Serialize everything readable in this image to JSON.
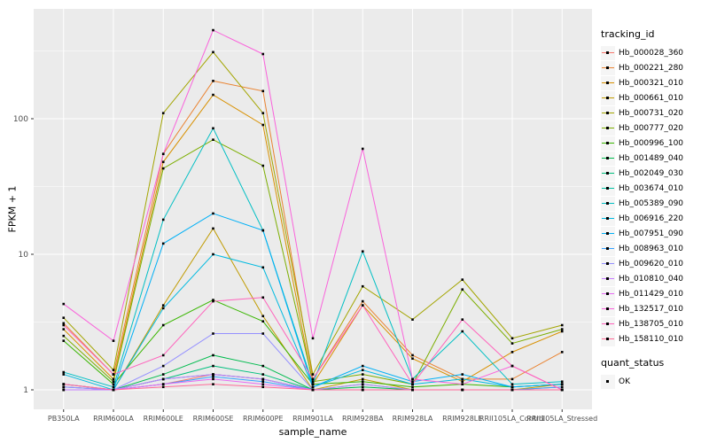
{
  "chart_data": {
    "type": "line",
    "title": "",
    "xlabel": "sample_name",
    "ylabel": "FPKM + 1",
    "y_scale": "log10",
    "ylim": [
      0.9,
      650
    ],
    "yticks": [
      1,
      10,
      100
    ],
    "y_minor": [
      3.162,
      31.62,
      316.2
    ],
    "grid": true,
    "legend_position": "right",
    "legend_title": "tracking_id",
    "quant_legend": {
      "title": "quant_status",
      "label": "OK"
    },
    "colors": {
      "panel_bg": "#EBEBEB",
      "grid": "#FFFFFF",
      "point": "#000000",
      "tick_label": "#4D4D4D",
      "axis_title": "#000000",
      "legend_key_bg": "#F5F5F5"
    },
    "categories": [
      "PB350LA",
      "RRIM600LA",
      "RRIM600LE",
      "RRIM600SE",
      "RRIM600PE",
      "RRIM901LA",
      "RRIM928BA",
      "RRIM928LA",
      "RRIM928LE",
      "RRII105LA_Control",
      "RRII105LA_Stressed"
    ],
    "series": [
      {
        "name": "Hb_000028_360",
        "color": "#F8766D",
        "values": [
          1.05,
          1.0,
          1.1,
          1.3,
          1.2,
          1.0,
          1.1,
          1.0,
          1.0,
          1.0,
          1.05
        ]
      },
      {
        "name": "Hb_000221_280",
        "color": "#EA8331",
        "values": [
          3.1,
          1.3,
          55,
          190,
          160,
          1.2,
          4.5,
          1.8,
          1.2,
          1.2,
          1.9
        ]
      },
      {
        "name": "Hb_000321_010",
        "color": "#D89000",
        "values": [
          2.8,
          1.2,
          48,
          150,
          90,
          1.1,
          4.2,
          1.7,
          1.15,
          1.9,
          2.7
        ]
      },
      {
        "name": "Hb_000661_010",
        "color": "#C09B00",
        "values": [
          1.1,
          1.0,
          4.2,
          15.5,
          3.5,
          1.0,
          1.2,
          1.0,
          1.0,
          1.0,
          1.1
        ]
      },
      {
        "name": "Hb_000731_020",
        "color": "#A3A500",
        "values": [
          3.4,
          1.4,
          110,
          310,
          110,
          1.3,
          5.8,
          3.3,
          6.5,
          2.4,
          3.0
        ]
      },
      {
        "name": "Hb_000777_020",
        "color": "#7CAE00",
        "values": [
          2.5,
          1.15,
          43,
          70,
          45,
          1.15,
          1.3,
          1.1,
          5.5,
          2.2,
          2.8
        ]
      },
      {
        "name": "Hb_000996_100",
        "color": "#39B600",
        "values": [
          2.3,
          1.1,
          3.0,
          4.6,
          3.2,
          1.1,
          1.15,
          1.05,
          1.1,
          1.05,
          1.1
        ]
      },
      {
        "name": "Hb_001489_040",
        "color": "#00BB4E",
        "values": [
          1.0,
          1.0,
          1.3,
          1.8,
          1.5,
          1.0,
          1.05,
          1.0,
          1.0,
          1.0,
          1.0
        ]
      },
      {
        "name": "Hb_002049_030",
        "color": "#00BF7D",
        "values": [
          1.0,
          1.0,
          1.2,
          1.5,
          1.3,
          1.0,
          1.0,
          1.0,
          1.0,
          1.0,
          1.0
        ]
      },
      {
        "name": "Hb_003674_010",
        "color": "#00C1A3",
        "values": [
          1.0,
          1.0,
          1.2,
          1.3,
          1.2,
          1.0,
          1.0,
          1.0,
          1.0,
          1.0,
          1.0
        ]
      },
      {
        "name": "Hb_005389_090",
        "color": "#00BFC4",
        "values": [
          1.35,
          1.05,
          18,
          85,
          15,
          1.1,
          10.5,
          1.2,
          2.7,
          1.1,
          1.15
        ]
      },
      {
        "name": "Hb_006916_220",
        "color": "#00BAE0",
        "values": [
          1.3,
          1.0,
          4.0,
          10,
          8,
          1.05,
          1.4,
          1.1,
          1.2,
          1.05,
          1.1
        ]
      },
      {
        "name": "Hb_007951_090",
        "color": "#00B0F6",
        "values": [
          1.1,
          1.0,
          12,
          20,
          15,
          1.05,
          1.5,
          1.15,
          1.3,
          1.05,
          1.1
        ]
      },
      {
        "name": "Hb_008963_010",
        "color": "#35A2FF",
        "values": [
          1.05,
          1.0,
          1.1,
          1.25,
          1.15,
          1.0,
          1.0,
          1.0,
          1.0,
          1.0,
          1.05
        ]
      },
      {
        "name": "Hb_009620_010",
        "color": "#9590FF",
        "values": [
          1.05,
          1.0,
          1.5,
          2.6,
          2.6,
          1.0,
          1.1,
          1.0,
          1.0,
          1.0,
          1.0
        ]
      },
      {
        "name": "Hb_010810_040",
        "color": "#C77CFF",
        "values": [
          1.0,
          1.0,
          1.2,
          1.3,
          1.2,
          1.0,
          1.0,
          1.0,
          1.0,
          1.0,
          1.0
        ]
      },
      {
        "name": "Hb_011429_010",
        "color": "#E76BF3",
        "values": [
          1.1,
          1.0,
          1.1,
          1.2,
          1.1,
          1.0,
          1.0,
          1.0,
          1.0,
          1.0,
          1.0
        ]
      },
      {
        "name": "Hb_132517_010",
        "color": "#FA62DB",
        "values": [
          4.3,
          2.3,
          55,
          450,
          300,
          2.4,
          60,
          1.2,
          1.1,
          1.5,
          1.0
        ]
      },
      {
        "name": "Hb_138705_010",
        "color": "#FF62BC",
        "values": [
          3.0,
          1.3,
          1.8,
          4.5,
          4.8,
          1.2,
          4.2,
          1.1,
          3.3,
          1.5,
          1.0
        ]
      },
      {
        "name": "Hb_158110_010",
        "color": "#FF6A98",
        "values": [
          1.1,
          1.0,
          1.05,
          1.1,
          1.05,
          1.0,
          1.0,
          1.0,
          1.0,
          1.0,
          1.0
        ]
      }
    ]
  }
}
